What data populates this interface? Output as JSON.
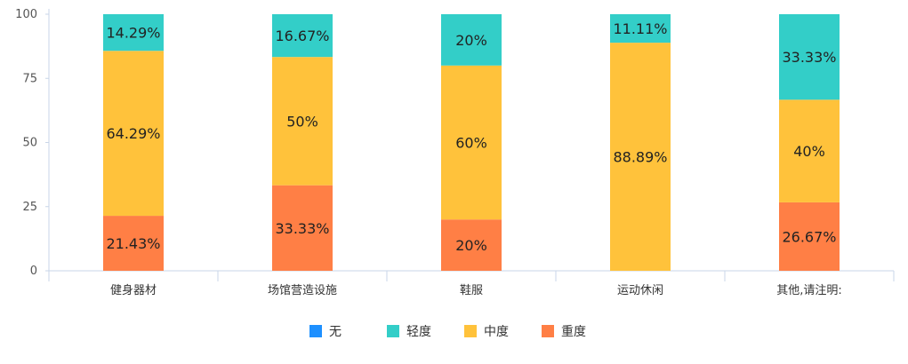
{
  "chart_data": {
    "type": "bar",
    "stacked": true,
    "categories": [
      "健身器材",
      "场馆营造设施",
      "鞋服",
      "运动休闲",
      "其他,请注明:"
    ],
    "series": [
      {
        "name": "无",
        "color": "#1e90ff",
        "values": [
          0,
          0,
          0,
          0,
          0
        ],
        "labels": [
          "",
          "",
          "",
          "",
          ""
        ]
      },
      {
        "name": "重度",
        "color": "#ff7f45",
        "values": [
          21.43,
          33.33,
          20,
          0,
          26.67
        ],
        "labels": [
          "21.43%",
          "33.33%",
          "20%",
          "",
          "26.67%"
        ]
      },
      {
        "name": "中度",
        "color": "#ffc23b",
        "values": [
          64.29,
          50,
          60,
          88.89,
          40
        ],
        "labels": [
          "64.29%",
          "50%",
          "60%",
          "88.89%",
          "40%"
        ]
      },
      {
        "name": "轻度",
        "color": "#33cec8",
        "values": [
          14.29,
          16.67,
          20,
          11.11,
          33.33
        ],
        "labels": [
          "14.29%",
          "16.67%",
          "20%",
          "11.11%",
          "33.33%"
        ]
      }
    ],
    "legend_order": [
      "无",
      "轻度",
      "中度",
      "重度"
    ],
    "ylim": [
      0,
      100
    ],
    "yticks": [
      0,
      25,
      50,
      75,
      100
    ],
    "grid": false,
    "legend_position": "bottom"
  }
}
